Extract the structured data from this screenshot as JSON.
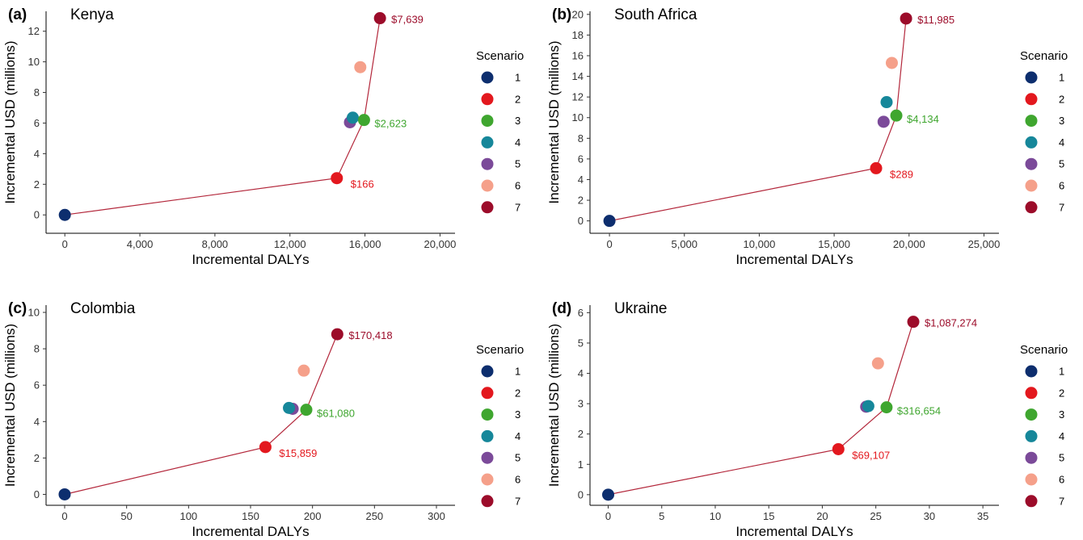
{
  "legend": {
    "title": "Scenario",
    "items": [
      {
        "label": "1",
        "color": "#0d2e6e"
      },
      {
        "label": "2",
        "color": "#e3181e"
      },
      {
        "label": "3",
        "color": "#3fa62f"
      },
      {
        "label": "4",
        "color": "#16879a"
      },
      {
        "label": "5",
        "color": "#7b4a99"
      },
      {
        "label": "6",
        "color": "#f5a08a"
      },
      {
        "label": "7",
        "color": "#9c0c2a"
      }
    ]
  },
  "line_color": "#b3273b",
  "label_colors": {
    "2": "#e3181e",
    "3": "#3fa62f",
    "7": "#9c0c2a"
  },
  "chart_data": [
    {
      "type": "scatter",
      "panel_letter": "(a)",
      "title": "Kenya",
      "xlabel": "Incremental DALYs",
      "ylabel": "Incremental USD (millions)",
      "xlim": [
        -1000,
        20800
      ],
      "ylim": [
        -1.2,
        13.3
      ],
      "xticks": [
        0,
        4000,
        8000,
        12000,
        16000,
        20000
      ],
      "xtick_labels": [
        "0",
        "4,000",
        "8,000",
        "12,000",
        "16,000",
        "20,000"
      ],
      "yticks": [
        0,
        2,
        4,
        6,
        8,
        10,
        12
      ],
      "ytick_labels": [
        "0",
        "2",
        "4",
        "6",
        "8",
        "10",
        "12"
      ],
      "points": [
        {
          "scenario": "1",
          "x": 0,
          "y": 0
        },
        {
          "scenario": "2",
          "x": 14500,
          "y": 2.4
        },
        {
          "scenario": "3",
          "x": 15950,
          "y": 6.2
        },
        {
          "scenario": "4",
          "x": 15350,
          "y": 6.35
        },
        {
          "scenario": "5",
          "x": 15200,
          "y": 6.05
        },
        {
          "scenario": "6",
          "x": 15750,
          "y": 9.65
        },
        {
          "scenario": "7",
          "x": 16800,
          "y": 12.85
        }
      ],
      "frontier": [
        "1",
        "2",
        "3",
        "7"
      ],
      "labels": [
        {
          "scenario": "2",
          "text": "$166"
        },
        {
          "scenario": "3",
          "text": "$2,623"
        },
        {
          "scenario": "7",
          "text": "$7,639"
        }
      ]
    },
    {
      "type": "scatter",
      "panel_letter": "(b)",
      "title": "South Africa",
      "xlabel": "Incremental DALYs",
      "ylabel": "Incremental USD (millions)",
      "xlim": [
        -1300,
        26000
      ],
      "ylim": [
        -1.2,
        20.3
      ],
      "xticks": [
        0,
        5000,
        10000,
        15000,
        20000,
        25000
      ],
      "xtick_labels": [
        "0",
        "5,000",
        "10,000",
        "15,000",
        "20,000",
        "25,000"
      ],
      "yticks": [
        0,
        2,
        4,
        6,
        8,
        10,
        12,
        14,
        16,
        18,
        20
      ],
      "ytick_labels": [
        "0",
        "2",
        "4",
        "6",
        "8",
        "10",
        "12",
        "14",
        "16",
        "18",
        "20"
      ],
      "points": [
        {
          "scenario": "1",
          "x": 0,
          "y": 0
        },
        {
          "scenario": "2",
          "x": 17800,
          "y": 5.1
        },
        {
          "scenario": "3",
          "x": 19150,
          "y": 10.2
        },
        {
          "scenario": "4",
          "x": 18500,
          "y": 11.5
        },
        {
          "scenario": "5",
          "x": 18300,
          "y": 9.6
        },
        {
          "scenario": "6",
          "x": 18850,
          "y": 15.3
        },
        {
          "scenario": "7",
          "x": 19800,
          "y": 19.6
        }
      ],
      "frontier": [
        "1",
        "2",
        "3",
        "7"
      ],
      "labels": [
        {
          "scenario": "2",
          "text": "$289"
        },
        {
          "scenario": "3",
          "text": "$4,134"
        },
        {
          "scenario": "7",
          "text": "$11,985"
        }
      ]
    },
    {
      "type": "scatter",
      "panel_letter": "(c)",
      "title": "Colombia",
      "xlabel": "Incremental DALYs",
      "ylabel": "Incremental USD (millions)",
      "xlim": [
        -15,
        315
      ],
      "ylim": [
        -0.6,
        10.4
      ],
      "xticks": [
        0,
        50,
        100,
        150,
        200,
        250,
        300
      ],
      "xtick_labels": [
        "0",
        "50",
        "100",
        "150",
        "200",
        "250",
        "300"
      ],
      "yticks": [
        0,
        2,
        4,
        6,
        8,
        10
      ],
      "ytick_labels": [
        "0",
        "2",
        "4",
        "6",
        "8",
        "10"
      ],
      "points": [
        {
          "scenario": "1",
          "x": 0,
          "y": 0
        },
        {
          "scenario": "2",
          "x": 162,
          "y": 2.6
        },
        {
          "scenario": "3",
          "x": 195,
          "y": 4.65
        },
        {
          "scenario": "4",
          "x": 181,
          "y": 4.75
        },
        {
          "scenario": "5",
          "x": 184,
          "y": 4.7
        },
        {
          "scenario": "6",
          "x": 193,
          "y": 6.8
        },
        {
          "scenario": "7",
          "x": 220,
          "y": 8.8
        }
      ],
      "frontier": [
        "1",
        "2",
        "3",
        "7"
      ],
      "labels": [
        {
          "scenario": "2",
          "text": "$15,859"
        },
        {
          "scenario": "3",
          "text": "$61,080"
        },
        {
          "scenario": "7",
          "text": "$170,418"
        }
      ]
    },
    {
      "type": "scatter",
      "panel_letter": "(d)",
      "title": "Ukraine",
      "xlabel": "Incremental DALYs",
      "ylabel": "Incremental USD (millions)",
      "xlim": [
        -1.7,
        36.5
      ],
      "ylim": [
        -0.35,
        6.25
      ],
      "xticks": [
        0,
        5,
        10,
        15,
        20,
        25,
        30,
        35
      ],
      "xtick_labels": [
        "0",
        "5",
        "10",
        "15",
        "20",
        "25",
        "30",
        "35"
      ],
      "yticks": [
        0,
        1,
        2,
        3,
        4,
        5,
        6
      ],
      "ytick_labels": [
        "0",
        "1",
        "2",
        "3",
        "4",
        "5",
        "6"
      ],
      "points": [
        {
          "scenario": "1",
          "x": 0,
          "y": 0
        },
        {
          "scenario": "2",
          "x": 21.5,
          "y": 1.5
        },
        {
          "scenario": "3",
          "x": 26,
          "y": 2.88
        },
        {
          "scenario": "4",
          "x": 24.3,
          "y": 2.92
        },
        {
          "scenario": "5",
          "x": 24.1,
          "y": 2.9
        },
        {
          "scenario": "6",
          "x": 25.2,
          "y": 4.33
        },
        {
          "scenario": "7",
          "x": 28.5,
          "y": 5.7
        }
      ],
      "frontier": [
        "1",
        "2",
        "3",
        "7"
      ],
      "labels": [
        {
          "scenario": "2",
          "text": "$69,107"
        },
        {
          "scenario": "3",
          "text": "$316,654"
        },
        {
          "scenario": "7",
          "text": "$1,087,274"
        }
      ]
    }
  ]
}
